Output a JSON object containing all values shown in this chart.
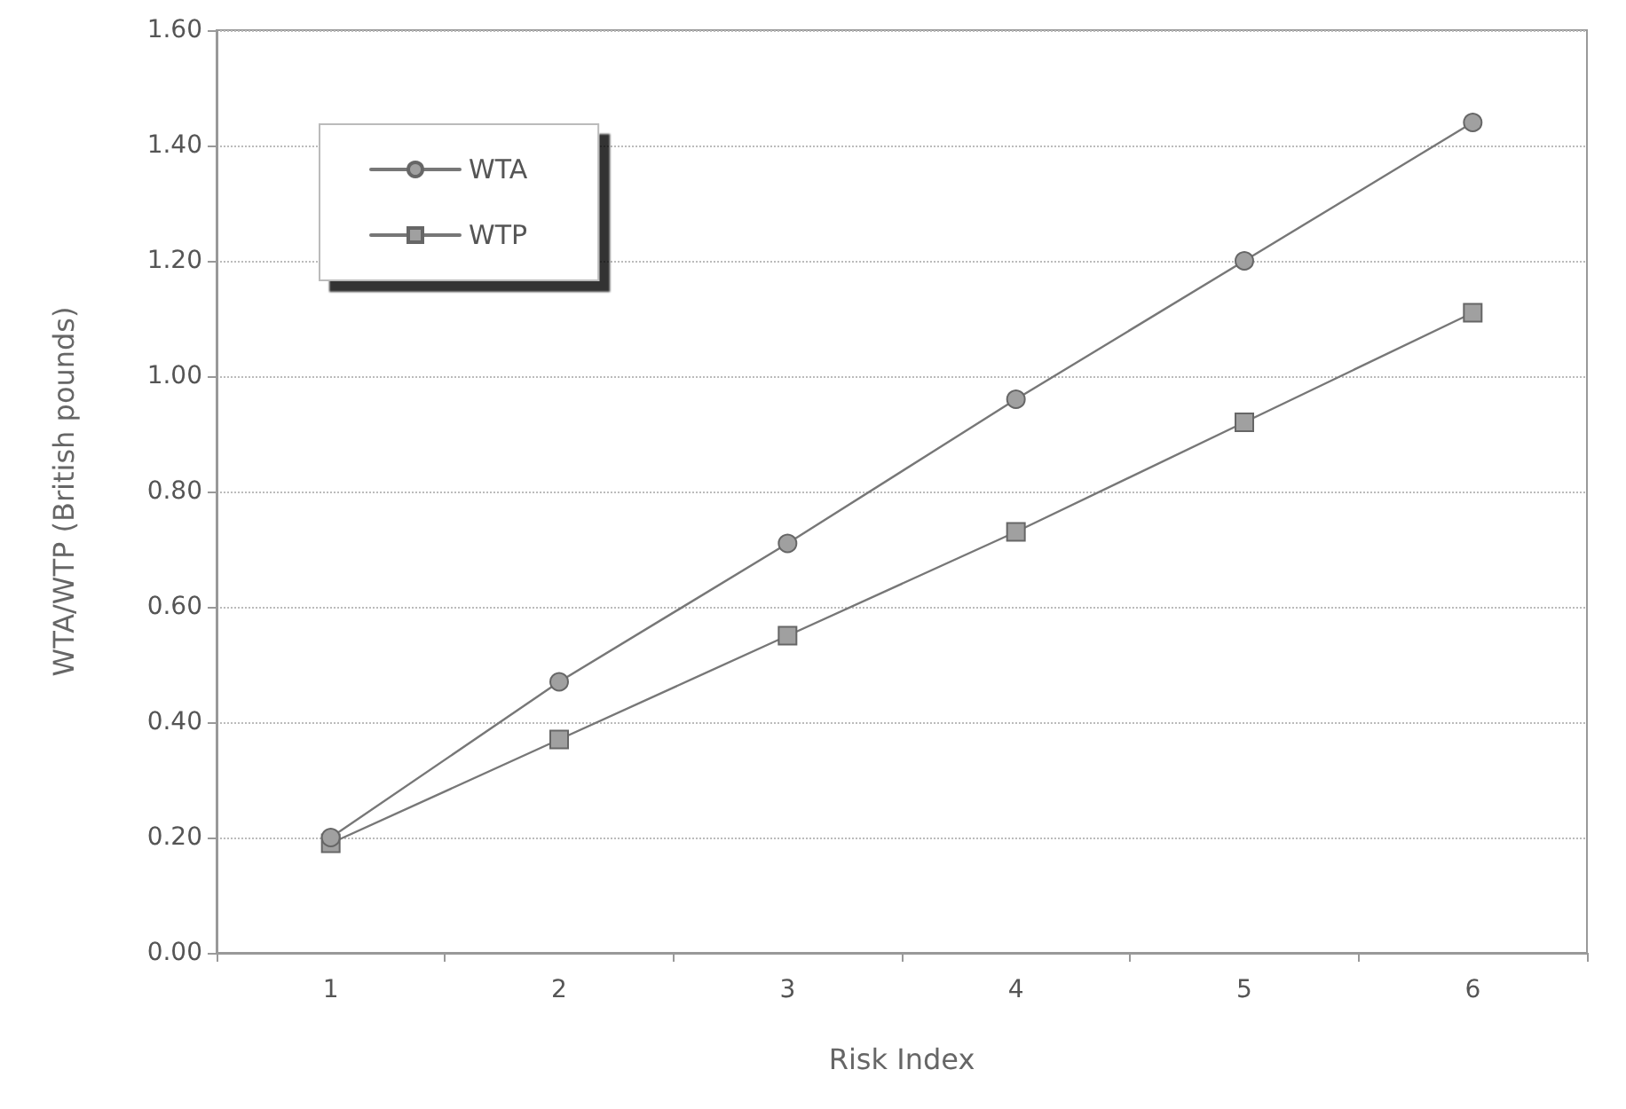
{
  "chart_data": {
    "type": "line",
    "xlabel": "Risk Index",
    "ylabel": "WTA/WTP (British pounds)",
    "categories": [
      "1",
      "2",
      "3",
      "4",
      "5",
      "6"
    ],
    "series": [
      {
        "name": "WTA",
        "color": "#a0a0a0",
        "marker": "circle",
        "values": [
          0.2,
          0.47,
          0.71,
          0.96,
          1.2,
          1.44
        ]
      },
      {
        "name": "WTP",
        "color": "#a0a0a0",
        "marker": "square",
        "values": [
          0.19,
          0.37,
          0.55,
          0.73,
          0.92,
          1.11
        ]
      }
    ],
    "ylim": [
      0,
      1.6
    ],
    "yticks": [
      {
        "value": 0,
        "label": "0.00"
      },
      {
        "value": 0.2,
        "label": "0.20"
      },
      {
        "value": 0.4,
        "label": "0.40"
      },
      {
        "value": 0.6,
        "label": "0.60"
      },
      {
        "value": 0.8,
        "label": "0.80"
      },
      {
        "value": 1.0,
        "label": "1.00"
      },
      {
        "value": 1.2,
        "label": "1.20"
      },
      {
        "value": 1.4,
        "label": "1.40"
      },
      {
        "value": 1.6,
        "label": "1.60"
      }
    ],
    "grid": "y",
    "legend": "top left",
    "line_style": "solid"
  }
}
